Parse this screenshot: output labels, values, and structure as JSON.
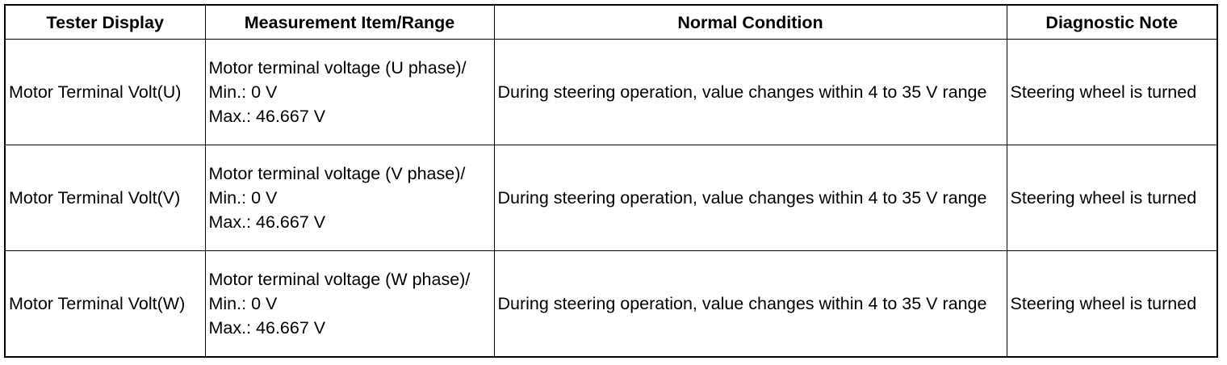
{
  "table": {
    "header": [
      "Tester Display",
      "Measurement Item/Range",
      "Normal Condition",
      "Diagnostic Note"
    ],
    "rows": [
      [
        "Motor Terminal Volt(U)",
        [
          "Motor terminal voltage (U phase)/",
          "Min.: 0 V",
          "Max.: 46.667 V"
        ],
        "During steering operation, value changes within 4 to 35 V range",
        "Steering wheel is turned"
      ],
      [
        "Motor Terminal Volt(V)",
        [
          "Motor terminal voltage (V phase)/",
          "Min.: 0 V",
          "Max.: 46.667 V"
        ],
        "During steering operation, value changes within 4 to 35 V range",
        "Steering wheel is turned"
      ],
      [
        "Motor Terminal Volt(W)",
        [
          "Motor terminal voltage (W phase)/",
          "Min.: 0 V",
          "Max.: 46.667 V"
        ],
        "During steering operation, value changes within 4 to 35 V range",
        "Steering wheel is turned"
      ]
    ]
  }
}
